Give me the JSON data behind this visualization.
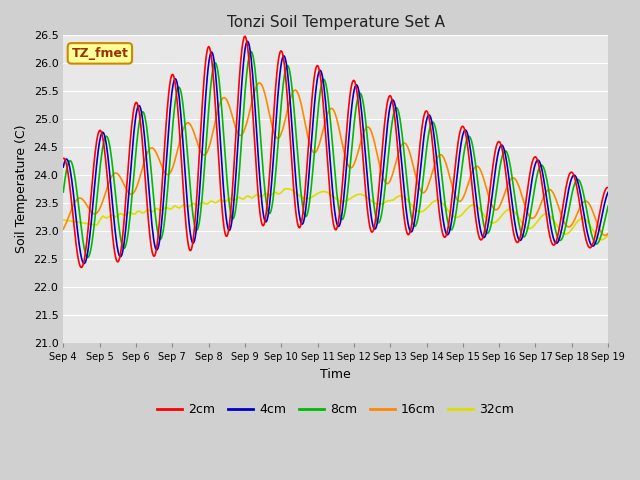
{
  "title": "Tonzi Soil Temperature Set A",
  "xlabel": "Time",
  "ylabel": "Soil Temperature (C)",
  "ylim": [
    21.0,
    26.5
  ],
  "figsize": [
    6.4,
    4.8
  ],
  "dpi": 100,
  "colors": {
    "2cm": "#ff0000",
    "4cm": "#0000cc",
    "8cm": "#00bb00",
    "16cm": "#ff8800",
    "32cm": "#dddd00"
  },
  "xtick_labels": [
    "Sep 4",
    "Sep 5",
    "Sep 6",
    "Sep 7",
    "Sep 8",
    "Sep 9",
    "Sep 10",
    "Sep 11",
    "Sep 12",
    "Sep 13",
    "Sep 14",
    "Sep 15",
    "Sep 16",
    "Sep 17",
    "Sep 18",
    "Sep 19"
  ],
  "annotation_text": "TZ_fmet",
  "annotation_bg": "#ffff99",
  "annotation_border": "#cc8800",
  "fig_bg": "#d0d0d0",
  "ax_bg": "#e8e8e8",
  "grid_color": "#ffffff"
}
